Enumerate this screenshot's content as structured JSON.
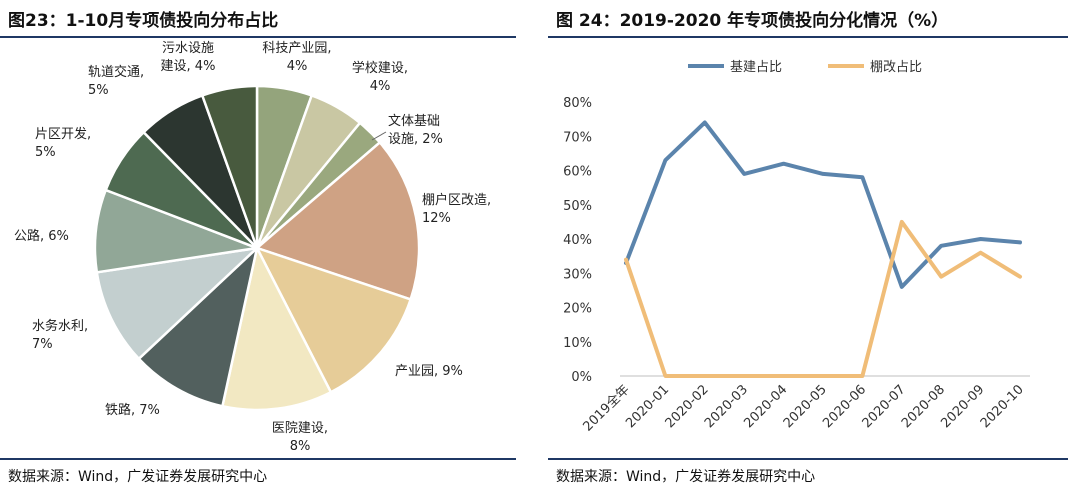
{
  "left": {
    "title": "图23：1-10月专项债投向分布占比",
    "source": "数据来源：Wind，广发证券发展研究中心"
  },
  "right": {
    "title": "图 24：2019-2020 年专项债投向分化情况（%）",
    "source": "数据来源：Wind，广发证券发展研究中心"
  },
  "chart_data": [
    {
      "type": "pie",
      "title": "1-10月专项债投向分布占比",
      "start_angle_deg": 0,
      "direction": "clockwise",
      "slices": [
        {
          "label": "科技产业园",
          "value": 4,
          "value_label": "4%",
          "color": "#94a47c"
        },
        {
          "label": "学校建设",
          "value": 4,
          "value_label": "4%",
          "color": "#c9c7a3"
        },
        {
          "label": "文体基础设施",
          "value": 2,
          "value_label": "2%",
          "color": "#9aa87e"
        },
        {
          "label": "棚户区改造",
          "value": 12,
          "value_label": "12%",
          "color": "#cfa284"
        },
        {
          "label": "产业园",
          "value": 9,
          "value_label": "9%",
          "color": "#e6cc98"
        },
        {
          "label": "医院建设",
          "value": 8,
          "value_label": "8%",
          "color": "#f2e8c2"
        },
        {
          "label": "铁路",
          "value": 7,
          "value_label": "7%",
          "color": "#52605e"
        },
        {
          "label": "水务水利",
          "value": 7,
          "value_label": "7%",
          "color": "#c3cfcf"
        },
        {
          "label": "公路",
          "value": 6,
          "value_label": "6%",
          "color": "#91a797"
        },
        {
          "label": "片区开发",
          "value": 5,
          "value_label": "5%",
          "color": "#4e6a51"
        },
        {
          "label": "轨道交通",
          "value": 5,
          "value_label": "5%",
          "color": "#2c3630"
        },
        {
          "label": "污水设施建设",
          "value": 4,
          "value_label": "4%",
          "color": "#485a3e"
        }
      ]
    },
    {
      "type": "line",
      "title": "2019-2020 年专项债投向分化情况（%）",
      "categories": [
        "2019全年",
        "2020-01",
        "2020-02",
        "2020-03",
        "2020-04",
        "2020-05",
        "2020-06",
        "2020-07",
        "2020-08",
        "2020-09",
        "2020-10"
      ],
      "series": [
        {
          "name": "基建占比",
          "color": "#5b84ac",
          "values": [
            33,
            63,
            74,
            59,
            62,
            59,
            58,
            26,
            38,
            40,
            39
          ]
        },
        {
          "name": "棚改占比",
          "color": "#f0bd78",
          "values": [
            34,
            0,
            0,
            0,
            0,
            0,
            0,
            45,
            29,
            36,
            29
          ]
        }
      ],
      "ylim": [
        0,
        80
      ],
      "yticks": [
        0,
        10,
        20,
        30,
        40,
        50,
        60,
        70,
        80
      ],
      "ytick_labels": [
        "0%",
        "10%",
        "20%",
        "30%",
        "40%",
        "50%",
        "60%",
        "70%",
        "80%"
      ],
      "legend": "top-left",
      "grid": false
    }
  ]
}
